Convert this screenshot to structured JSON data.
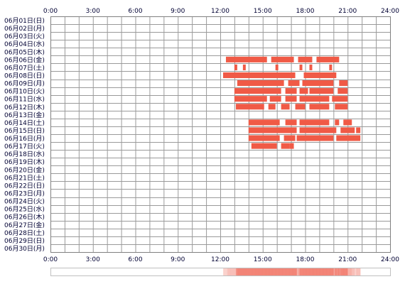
{
  "chart_data": {
    "type": "heatmap",
    "x_ticks": [
      "0:00",
      "3:00",
      "6:00",
      "9:00",
      "12:00",
      "15:00",
      "18:00",
      "21:00",
      "24:00"
    ],
    "xlim": [
      0,
      24
    ],
    "grid": true,
    "days": [
      "06月01日(日)",
      "06月02日(月)",
      "06月03日(火)",
      "06月04日(水)",
      "06月05日(木)",
      "06月06日(金)",
      "06月07日(土)",
      "06月08日(日)",
      "06月09日(月)",
      "06月10日(火)",
      "06月11日(水)",
      "06月12日(木)",
      "06月13日(金)",
      "06月14日(土)",
      "06月15日(日)",
      "06月16日(月)",
      "06月17日(火)",
      "06月18日(水)",
      "06月19日(木)",
      "06月20日(金)",
      "06月21日(土)",
      "06月22日(日)",
      "06月23日(月)",
      "06月24日(火)",
      "06月25日(水)",
      "06月26日(木)",
      "06月27日(金)",
      "06月28日(土)",
      "06月29日(日)",
      "06月30日(月)"
    ],
    "bar_color": "#f05a46",
    "bar_color_light": "#f5a07a",
    "heat_color": "#f06a5a",
    "summary_range": [
      12.2,
      21.9
    ],
    "activity": [
      [],
      [],
      [],
      [],
      [],
      [
        [
          12.4,
          15.3
        ],
        [
          15.6,
          17.2
        ],
        [
          17.5,
          18.5
        ],
        [
          18.8,
          20.4
        ]
      ],
      [
        [
          13.0,
          13.2
        ],
        [
          13.6,
          13.8
        ],
        [
          15.9,
          16.1
        ],
        [
          17.6,
          17.8
        ],
        [
          18.3,
          18.5
        ],
        [
          19.7,
          19.9
        ]
      ],
      [
        [
          12.2,
          17.3
        ],
        [
          17.9,
          20.2
        ]
      ],
      [
        [
          13.2,
          16.5
        ],
        [
          16.8,
          17.6
        ],
        [
          17.8,
          20.0
        ],
        [
          20.4,
          21.0
        ]
      ],
      [
        [
          13.0,
          16.3
        ],
        [
          16.6,
          17.4
        ],
        [
          17.6,
          18.2
        ],
        [
          18.3,
          20.0
        ],
        [
          20.3,
          21.0
        ]
      ],
      [
        [
          13.0,
          15.3
        ],
        [
          15.5,
          16.3
        ],
        [
          16.6,
          17.4
        ],
        [
          17.6,
          19.7
        ],
        [
          19.9,
          21.0
        ]
      ],
      [
        [
          13.1,
          15.1
        ],
        [
          15.4,
          15.9
        ],
        [
          16.3,
          16.9
        ],
        [
          17.3,
          18.0
        ],
        [
          18.3,
          19.7
        ],
        [
          20.1,
          21.0
        ]
      ],
      [],
      [
        [
          14.0,
          16.2
        ],
        [
          16.6,
          17.4
        ],
        [
          17.6,
          19.7
        ],
        [
          20.1,
          20.4
        ],
        [
          20.7,
          21.3
        ]
      ],
      [
        [
          14.0,
          17.4
        ],
        [
          17.6,
          20.2
        ],
        [
          20.5,
          21.5
        ],
        [
          21.6,
          21.9
        ]
      ],
      [
        [
          14.0,
          16.2
        ],
        [
          16.5,
          17.3
        ],
        [
          17.4,
          20.0
        ],
        [
          20.2,
          21.9
        ]
      ],
      [
        [
          14.2,
          16.0
        ],
        [
          16.3,
          16.9
        ],
        [
          16.9,
          17.2
        ]
      ],
      [],
      [],
      [],
      [],
      [],
      [],
      [],
      [],
      [],
      [],
      [],
      [],
      []
    ]
  }
}
